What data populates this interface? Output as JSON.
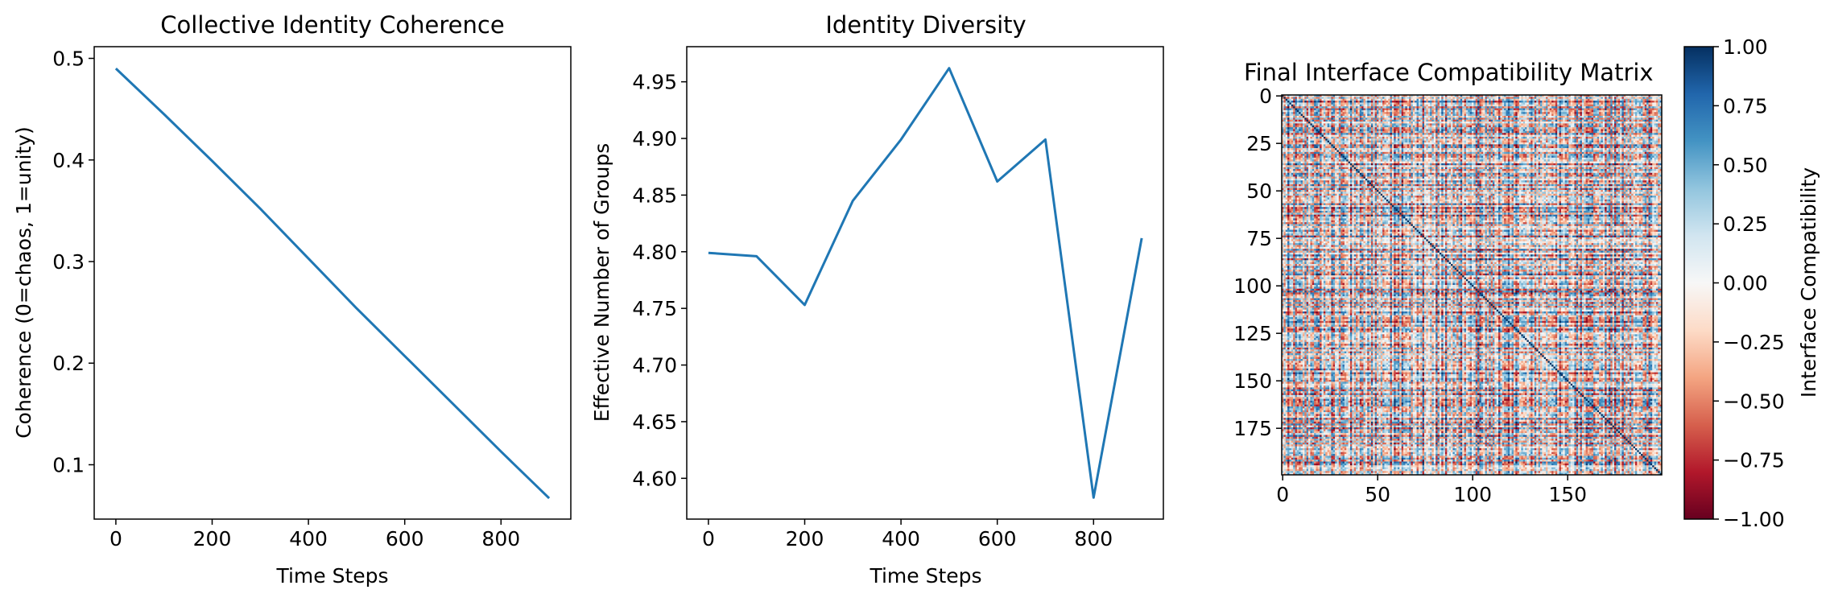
{
  "chart_data": [
    {
      "type": "line",
      "title": "Collective Identity Coherence",
      "xlabel": "Time Steps",
      "ylabel": "Coherence (0=chaos, 1=unity)",
      "xlim": [
        -45,
        945
      ],
      "ylim": [
        0.0465,
        0.5115
      ],
      "xticks": [
        0,
        200,
        400,
        600,
        800
      ],
      "xtick_labels": [
        "0",
        "200",
        "400",
        "600",
        "800"
      ],
      "yticks": [
        0.1,
        0.2,
        0.3,
        0.4,
        0.5
      ],
      "ytick_labels": [
        "0.1",
        "0.2",
        "0.3",
        "0.4",
        "0.5"
      ],
      "color": "#1f77b4",
      "series": [
        {
          "x": [
            0,
            100,
            200,
            300,
            400,
            500,
            600,
            700,
            800,
            900
          ],
          "values": [
            0.49,
            0.445,
            0.399,
            0.352,
            0.303,
            0.254,
            0.207,
            0.16,
            0.113,
            0.067
          ]
        }
      ]
    },
    {
      "type": "line",
      "title": "Identity Diversity",
      "xlabel": "Time Steps",
      "ylabel": "Effective Number of Groups",
      "xlim": [
        -45,
        945
      ],
      "ylim": [
        4.564,
        4.981
      ],
      "xticks": [
        0,
        200,
        400,
        600,
        800
      ],
      "xtick_labels": [
        "0",
        "200",
        "400",
        "600",
        "800"
      ],
      "yticks": [
        4.6,
        4.65,
        4.7,
        4.75,
        4.8,
        4.85,
        4.9,
        4.95
      ],
      "ytick_labels": [
        "4.60",
        "4.65",
        "4.70",
        "4.75",
        "4.80",
        "4.85",
        "4.90",
        "4.95"
      ],
      "color": "#1f77b4",
      "series": [
        {
          "x": [
            0,
            100,
            200,
            300,
            400,
            500,
            600,
            700,
            800,
            900
          ],
          "values": [
            4.799,
            4.796,
            4.753,
            4.845,
            4.899,
            4.962,
            4.862,
            4.899,
            4.583,
            4.812
          ]
        }
      ]
    },
    {
      "type": "heatmap",
      "title": "Final Interface Compatibility Matrix",
      "size": 200,
      "xticks": [
        0,
        50,
        100,
        150
      ],
      "xtick_labels": [
        "0",
        "50",
        "100",
        "150"
      ],
      "yticks": [
        0,
        25,
        50,
        75,
        100,
        125,
        150,
        175
      ],
      "ytick_labels": [
        "0",
        "25",
        "50",
        "75",
        "100",
        "125",
        "150",
        "175"
      ],
      "colormap": "RdBu",
      "colorbar": {
        "label": "Interface Compatibility",
        "range": [
          -1.0,
          1.0
        ],
        "ticks": [
          1.0,
          0.75,
          0.5,
          0.25,
          0.0,
          -0.25,
          -0.5,
          -0.75,
          -1.0
        ],
        "tick_labels": [
          "1.00",
          "0.75",
          "0.50",
          "0.25",
          "0.00",
          "−0.25",
          "−0.50",
          "−0.75",
          "−1.00"
        ]
      },
      "diagonal_value": 1.0
    }
  ]
}
